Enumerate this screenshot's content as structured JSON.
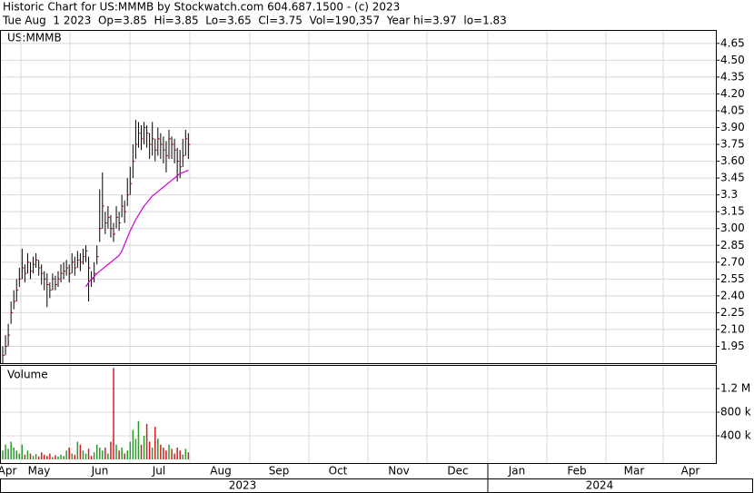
{
  "chart_data": {
    "type": "ohlc",
    "title": "Historic Chart for US:MMMB by Stockwatch.com 604.687.1500 - (c) 2023",
    "subtitle": "Tue Aug  1 2023  Op=3.85  Hi=3.85  Lo=3.65  Cl=3.75  Vol=190,357  Year hi=3.97  lo=1.83",
    "symbol": "US:MMMB",
    "volume_label": "Volume",
    "months": [
      "Apr",
      "May",
      "Jun",
      "Jul",
      "Aug",
      "Sep",
      "Oct",
      "Nov",
      "Dec",
      "Jan",
      "Feb",
      "Mar",
      "Apr"
    ],
    "years": [
      "2023",
      "2024"
    ],
    "ylim": [
      1.8,
      4.77
    ],
    "yticks": [
      1.95,
      {
        "value": 2.1,
        "label": "2.10"
      },
      2.25,
      {
        "value": 2.4,
        "label": "2.40"
      },
      2.55,
      {
        "value": 2.7,
        "label": "2.70"
      },
      2.85,
      {
        "value": 3.0,
        "label": "3.00"
      },
      3.15,
      3.3,
      3.45,
      {
        "value": 3.6,
        "label": "3.60"
      },
      3.75,
      {
        "value": 3.9,
        "label": "3.90"
      },
      4.05,
      {
        "value": 4.2,
        "label": "4.20"
      },
      4.35,
      {
        "value": 4.5,
        "label": "4.50"
      },
      4.65
    ],
    "grid": true,
    "bar_color": "#000000",
    "close_color": "#b00000",
    "high": [
      1.95,
      2.05,
      2.15,
      2.35,
      2.45,
      2.55,
      2.65,
      2.82,
      2.68,
      2.78,
      2.7,
      2.75,
      2.78,
      2.72,
      2.68,
      2.62,
      2.6,
      2.52,
      2.6,
      2.58,
      2.62,
      2.68,
      2.7,
      2.72,
      2.68,
      2.78,
      2.75,
      2.8,
      2.78,
      2.82,
      2.85,
      2.75,
      2.62,
      2.7,
      2.85,
      3.35,
      3.5,
      3.15,
      3.2,
      3.12,
      3.05,
      3.2,
      3.15,
      3.3,
      3.25,
      3.45,
      3.55,
      3.75,
      3.97,
      3.95,
      3.92,
      3.95,
      3.92,
      3.85,
      3.95,
      3.8,
      3.9,
      3.85,
      3.82,
      3.78,
      3.88,
      3.82,
      3.8,
      3.72,
      3.7,
      3.8,
      3.88,
      3.85
    ],
    "low": [
      1.8,
      1.87,
      1.95,
      2.15,
      2.28,
      2.35,
      2.48,
      2.55,
      2.52,
      2.6,
      2.55,
      2.6,
      2.65,
      2.58,
      2.5,
      2.45,
      2.3,
      2.38,
      2.45,
      2.45,
      2.48,
      2.52,
      2.55,
      2.58,
      2.52,
      2.6,
      2.58,
      2.65,
      2.62,
      2.68,
      2.7,
      2.35,
      2.48,
      2.52,
      2.68,
      2.88,
      3.0,
      2.95,
      3.0,
      2.92,
      2.88,
      3.0,
      2.98,
      3.1,
      3.05,
      3.2,
      3.3,
      3.45,
      3.62,
      3.72,
      3.7,
      3.75,
      3.72,
      3.62,
      3.65,
      3.6,
      3.65,
      3.62,
      3.58,
      3.5,
      3.62,
      3.62,
      3.58,
      3.42,
      3.45,
      3.55,
      3.65,
      3.62
    ],
    "close": [
      1.87,
      1.95,
      2.05,
      2.25,
      2.35,
      2.45,
      2.55,
      2.65,
      2.6,
      2.7,
      2.62,
      2.68,
      2.72,
      2.65,
      2.6,
      2.55,
      2.5,
      2.45,
      2.55,
      2.5,
      2.55,
      2.6,
      2.62,
      2.65,
      2.6,
      2.7,
      2.65,
      2.72,
      2.7,
      2.75,
      2.8,
      2.65,
      2.55,
      2.6,
      2.75,
      3.0,
      3.2,
      3.05,
      3.1,
      3.0,
      2.95,
      3.1,
      3.05,
      3.2,
      3.15,
      3.3,
      3.4,
      3.6,
      3.75,
      3.85,
      3.8,
      3.9,
      3.85,
      3.75,
      3.8,
      3.7,
      3.8,
      3.75,
      3.7,
      3.65,
      3.8,
      3.75,
      3.7,
      3.6,
      3.55,
      3.65,
      3.8,
      3.75
    ],
    "ma": {
      "color": "#d000d0",
      "values": [
        null,
        null,
        null,
        null,
        null,
        null,
        null,
        null,
        null,
        null,
        null,
        null,
        null,
        null,
        null,
        null,
        null,
        null,
        null,
        null,
        null,
        null,
        null,
        null,
        null,
        null,
        null,
        null,
        null,
        null,
        2.48,
        2.52,
        2.55,
        2.57,
        2.6,
        2.62,
        2.64,
        2.66,
        2.68,
        2.7,
        2.72,
        2.74,
        2.76,
        2.8,
        2.86,
        2.92,
        2.98,
        3.03,
        3.08,
        3.12,
        3.16,
        3.2,
        3.23,
        3.26,
        3.29,
        3.31,
        3.33,
        3.35,
        3.37,
        3.39,
        3.41,
        3.43,
        3.45,
        3.47,
        3.49,
        3.5,
        3.51,
        3.52
      ]
    },
    "volume": {
      "up_color": "#2e9a2e",
      "down_color": "#d02020",
      "ylim": [
        0,
        1600000
      ],
      "yticks": [
        {
          "value": 400000,
          "label": "400 k"
        },
        {
          "value": 800000,
          "label": "800 k"
        },
        {
          "value": 1200000,
          "label": "1.2 M"
        }
      ],
      "values": [
        150000,
        250000,
        180000,
        300000,
        200000,
        150000,
        100000,
        250000,
        80000,
        150000,
        100000,
        60000,
        90000,
        50000,
        120000,
        80000,
        60000,
        100000,
        40000,
        70000,
        50000,
        80000,
        60000,
        150000,
        200000,
        100000,
        80000,
        300000,
        250000,
        150000,
        100000,
        180000,
        60000,
        120000,
        250000,
        200000,
        150000,
        200000,
        100000,
        300000,
        1550000,
        250000,
        150000,
        200000,
        100000,
        150000,
        300000,
        500000,
        350000,
        650000,
        250000,
        400000,
        600000,
        300000,
        200000,
        550000,
        350000,
        250000,
        200000,
        150000,
        250000,
        180000,
        100000,
        200000,
        150000,
        80000,
        180000,
        120000
      ]
    }
  }
}
